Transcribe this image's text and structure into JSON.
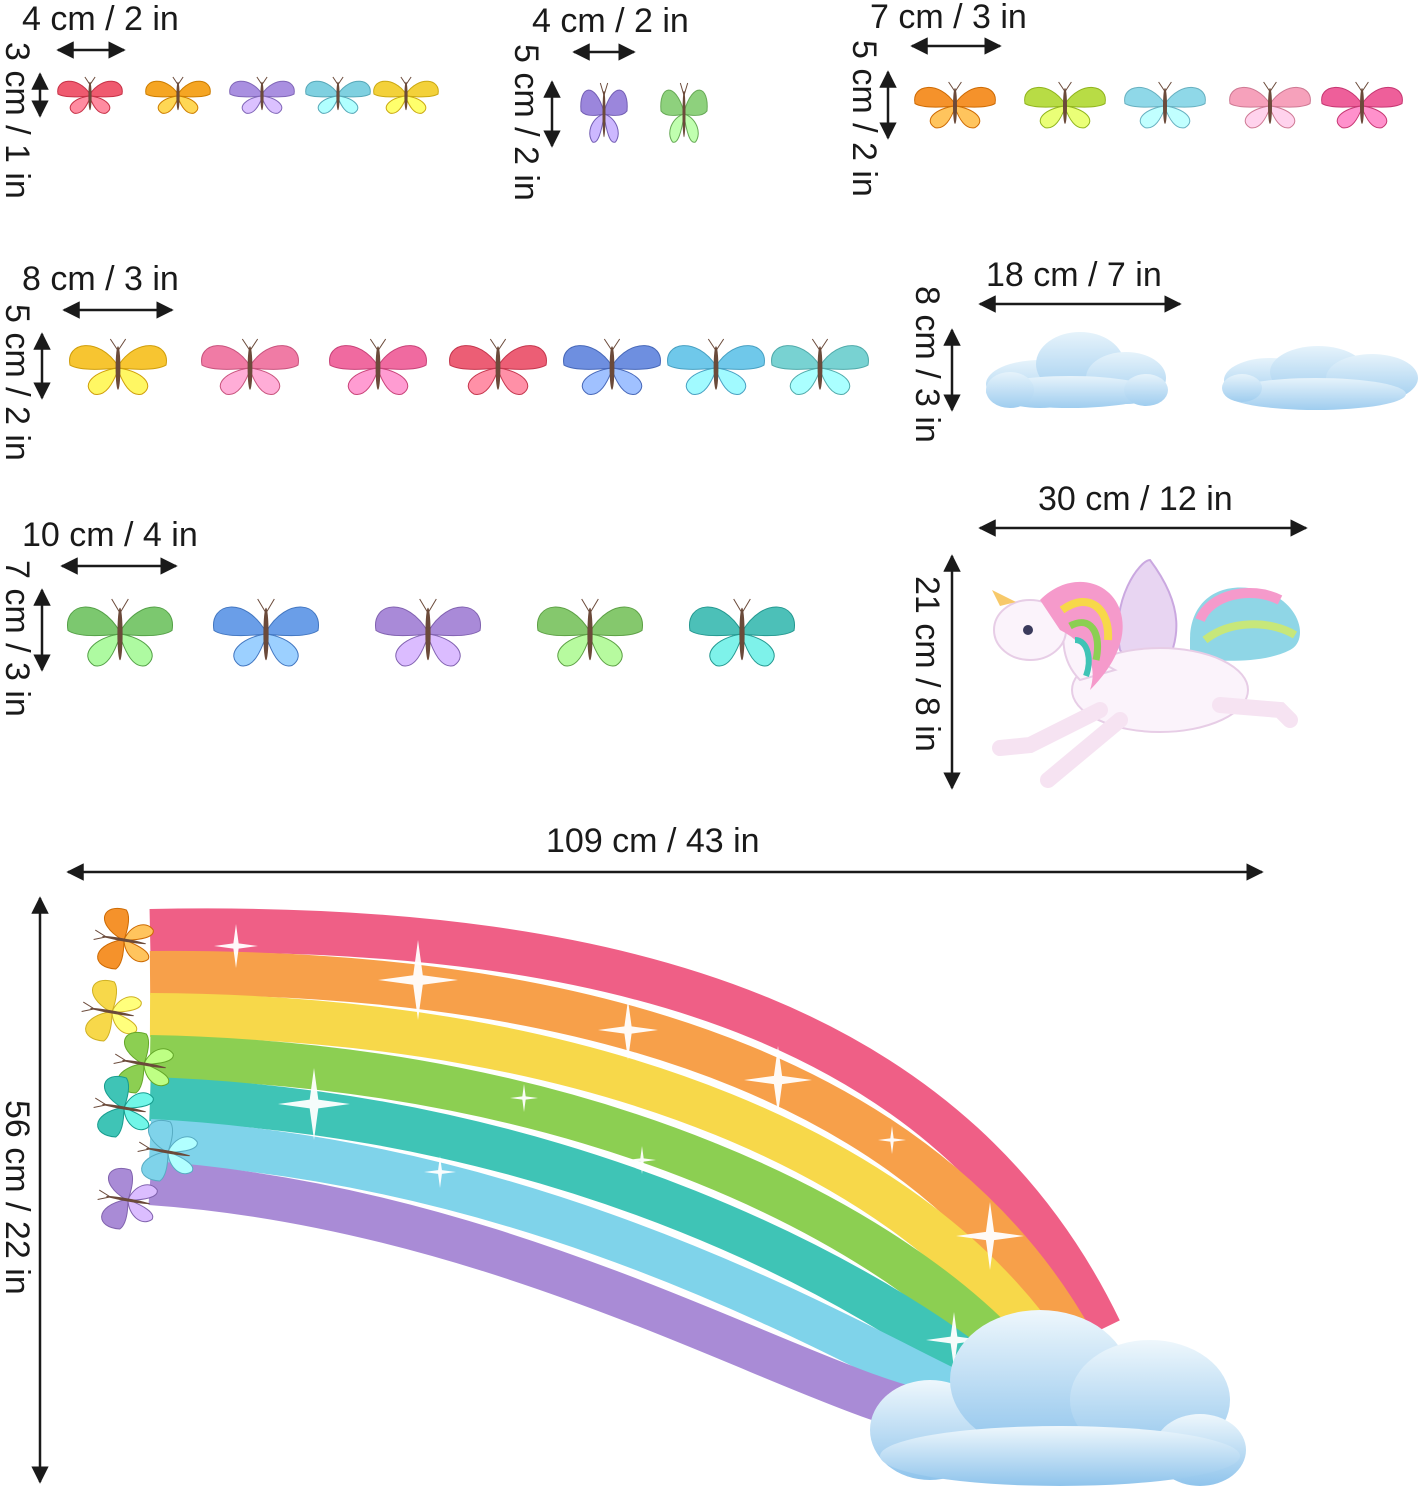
{
  "groups": [
    {
      "width_label": "4 cm / 2 in",
      "height_label": "3 cm / 1 in",
      "colors": [
        "#ef5a6f",
        "#f5a523",
        "#a98fe0",
        "#7fd0e0",
        "#f3d13a"
      ]
    },
    {
      "width_label": "4 cm / 2 in",
      "height_label": "5 cm / 2 in",
      "colors": [
        "#9b86dc",
        "#8ed17d"
      ]
    },
    {
      "width_label": "7 cm / 3 in",
      "height_label": "5 cm / 2 in",
      "colors": [
        "#f5922b",
        "#b8dc45",
        "#8fd8e8",
        "#f6a1bb",
        "#ee5f9a"
      ]
    },
    {
      "width_label": "8 cm / 3 in",
      "height_label": "5 cm / 2 in",
      "colors": [
        "#f7c531",
        "#f07ba5",
        "#f06aa0",
        "#ec5e75",
        "#6e8fe0",
        "#6fc8ea",
        "#78d2d2"
      ]
    },
    {
      "width_label": "10 cm / 4 in",
      "height_label": "7 cm / 3 in",
      "colors": [
        "#7cc86f",
        "#6a9ee8",
        "#a98ad8",
        "#85c86d",
        "#4cc0b8"
      ]
    }
  ],
  "clouds": {
    "width_label": "18 cm / 7 in",
    "height_label": "8 cm / 3 in"
  },
  "unicorn": {
    "width_label": "30 cm / 12 in",
    "height_label": "21 cm / 8 in"
  },
  "rainbow": {
    "width_label": "109 cm / 43 in",
    "height_label": "56 cm / 22 in",
    "bands": [
      "#ef5f86",
      "#f7a04a",
      "#f7d84a",
      "#8ccf52",
      "#3fc4b6",
      "#7fd3ea",
      "#a98bd6"
    ]
  }
}
